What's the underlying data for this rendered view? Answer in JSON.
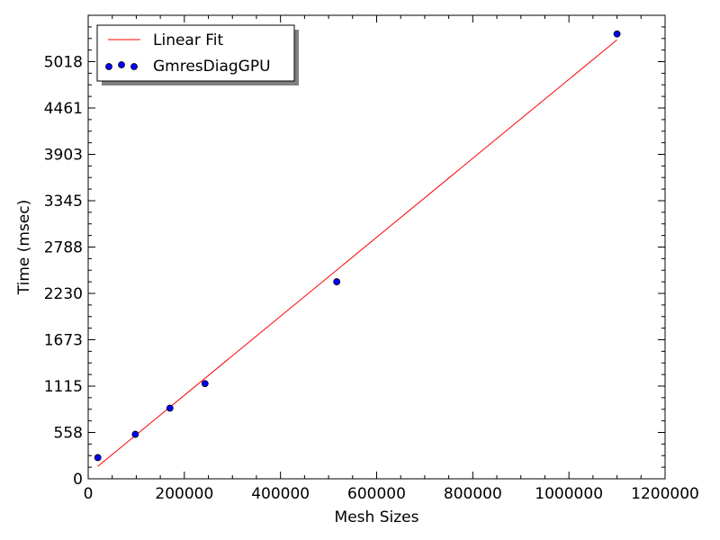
{
  "chart_data": {
    "type": "scatter",
    "title": "",
    "xlabel": "Mesh Sizes",
    "ylabel": "Time (msec)",
    "xlim": [
      0,
      1200000
    ],
    "ylim": [
      0,
      5575
    ],
    "x_ticks": [
      0,
      200000,
      400000,
      600000,
      800000,
      1000000,
      1200000
    ],
    "x_tick_labels": [
      "0",
      "200000",
      "400000",
      "600000",
      "800000",
      "1000000",
      "1200000"
    ],
    "y_ticks": [
      0,
      558,
      1115,
      1673,
      2230,
      2788,
      3345,
      3903,
      4461,
      5018
    ],
    "y_tick_labels": [
      "0",
      "558",
      "1115",
      "1673",
      "2230",
      "2788",
      "3345",
      "3903",
      "4461",
      "5018"
    ],
    "legend_position": "top-left",
    "grid": false,
    "series": [
      {
        "name": "Linear Fit",
        "kind": "line",
        "color": "#ff0000",
        "x": [
          20000,
          1100000
        ],
        "y": [
          150,
          5280
        ]
      },
      {
        "name": "GmresDiagGPU",
        "kind": "scatter",
        "color": "#0000ff",
        "x": [
          20000,
          98000,
          170000,
          243000,
          517000,
          1100000
        ],
        "y": [
          255,
          535,
          850,
          1145,
          2370,
          5350
        ]
      }
    ]
  }
}
